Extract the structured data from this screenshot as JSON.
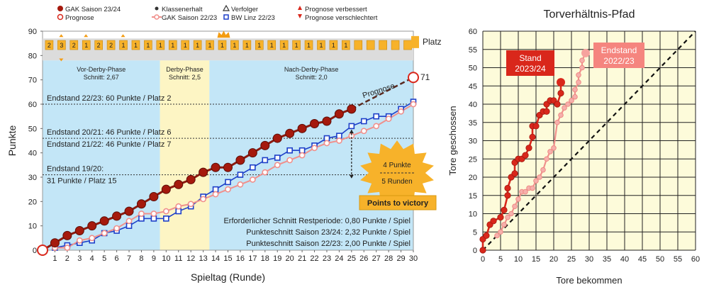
{
  "chart_data": [
    {
      "type": "line",
      "title": "",
      "xlabel": "Spieltag (Runde)",
      "ylabel": "Punkte",
      "xlim": [
        0,
        30
      ],
      "ylim": [
        0,
        90
      ],
      "x_ticks": [
        "1",
        "2",
        "3",
        "4",
        "5",
        "6",
        "7",
        "8",
        "9",
        "10",
        "11",
        "12",
        "13",
        "14",
        "15",
        "16",
        "17",
        "18",
        "19",
        "20",
        "21",
        "22",
        "23",
        "24",
        "25",
        "26",
        "27",
        "28",
        "29",
        "30"
      ],
      "y_ticks": [
        "0",
        "10",
        "20",
        "30",
        "40",
        "50",
        "60",
        "70",
        "80",
        "90"
      ],
      "series": [
        {
          "name": "GAK Saison 23/24",
          "x": [
            0,
            1,
            2,
            3,
            4,
            5,
            6,
            7,
            8,
            9,
            10,
            11,
            12,
            13,
            14,
            15,
            16,
            17,
            18,
            19,
            20,
            21,
            22,
            23,
            24,
            25
          ],
          "values": [
            0,
            3,
            6,
            8,
            10,
            12,
            14,
            16,
            19,
            22,
            25,
            27,
            29,
            32,
            34,
            34,
            37,
            40,
            43,
            46,
            48,
            50,
            52,
            53,
            56,
            58
          ]
        },
        {
          "name": "Prognose",
          "x": [
            25,
            30
          ],
          "values": [
            58,
            71
          ]
        },
        {
          "name": "GAK Saison 22/23",
          "x": [
            1,
            2,
            3,
            4,
            5,
            6,
            7,
            8,
            9,
            10,
            11,
            12,
            13,
            14,
            15,
            16,
            17,
            18,
            19,
            20,
            21,
            22,
            23,
            24,
            25,
            26,
            27,
            28,
            29,
            30
          ],
          "values": [
            1,
            1,
            4,
            5,
            7,
            9,
            12,
            15,
            15,
            16,
            18,
            19,
            21,
            23,
            25,
            27,
            29,
            32,
            35,
            37,
            39,
            42,
            44,
            45,
            47,
            49,
            51,
            54,
            57,
            60
          ]
        },
        {
          "name": "BW Linz 22/23",
          "x": [
            1,
            2,
            3,
            4,
            5,
            6,
            7,
            8,
            9,
            10,
            11,
            12,
            13,
            14,
            15,
            16,
            17,
            18,
            19,
            20,
            21,
            22,
            23,
            24,
            25,
            26,
            27,
            28,
            29,
            30
          ],
          "values": [
            1,
            2,
            3,
            4,
            7,
            8,
            10,
            13,
            13,
            13,
            16,
            18,
            22,
            25,
            28,
            31,
            34,
            37,
            38,
            41,
            41,
            43,
            46,
            47,
            51,
            53,
            55,
            55,
            58,
            61
          ]
        }
      ],
      "legend": [
        "GAK Saison 23/24",
        "Prognose",
        "Klassenerhalt",
        "GAK Saison 22/23",
        "Verfolger",
        "BW Linz 22/23",
        "Prognose verbessert",
        "Prognose verschlechtert"
      ],
      "platz_label": "Platz",
      "platz_values": [
        "2",
        "3",
        "2",
        "1",
        "2",
        "2",
        "1",
        "1",
        "1",
        "1",
        "1",
        "1",
        "1",
        "1",
        "1",
        "1",
        "1",
        "1",
        "1",
        "1",
        "1",
        "1",
        "1",
        "1",
        "1"
      ],
      "phases": [
        {
          "name": "Vor-Derby-Phase",
          "avg": "Schnitt: 2,67",
          "from": 0,
          "to": 9.5,
          "color": "#c3e6f7"
        },
        {
          "name": "Derby-Phase",
          "avg": "Schnitt: 2,5",
          "from": 9.5,
          "to": 13.5,
          "color": "#fdf5c4"
        },
        {
          "name": "Nach-Derby-Phase",
          "avg": "Schnitt: 2,0",
          "from": 13.5,
          "to": 30,
          "color": "#c3e6f7"
        }
      ],
      "reference_lines": [
        {
          "label": "Endstand 22/23: 60 Punkte / Platz 2",
          "y": 60
        },
        {
          "label1": "Endstand 20/21: 46 Punkte / Platz 6",
          "label2": "Endstand 21/22: 46 Punkte / Platz 7",
          "y": 46
        },
        {
          "label1": "Endstand 19/20:",
          "label2": "31 Punkte / Platz 15",
          "y": 31
        }
      ],
      "annotations": {
        "prognose_text": "Prognose",
        "end_value": "71",
        "burst_top": "4 Punkte",
        "burst_bottom": "5 Runden",
        "victory_button": "Points to victory",
        "stat1": "Erforderlicher Schnitt Restperiode: 0,80 Punkte / Spiel",
        "stat2": "Punkteschnitt Saison 23/24: 2,32 Punkte / Spiel",
        "stat3": "Punkteschnitt Saison 22/23: 2,00 Punkte / Spiel"
      }
    },
    {
      "type": "line",
      "title": "Torverhältnis-Pfad",
      "xlabel": "Tore  bekommen",
      "ylabel": "Tore geschossen",
      "xlim": [
        0,
        60
      ],
      "ylim": [
        0,
        60
      ],
      "x_ticks": [
        "0",
        "5",
        "10",
        "15",
        "20",
        "25",
        "30",
        "35",
        "40",
        "45",
        "50",
        "55",
        "60"
      ],
      "y_ticks": [
        "0",
        "5",
        "10",
        "15",
        "20",
        "25",
        "30",
        "35",
        "40",
        "45",
        "50",
        "55",
        "60"
      ],
      "series": [
        {
          "name": "Stand 2023/24",
          "x": [
            0,
            0,
            1,
            2,
            3,
            5,
            6,
            7,
            7,
            8,
            9,
            9,
            10,
            11,
            12,
            13,
            14,
            14,
            15,
            16,
            17,
            18,
            18,
            19,
            20,
            21,
            22,
            22
          ],
          "values": [
            0,
            3,
            4,
            7,
            8,
            9,
            11,
            15,
            17,
            20,
            21,
            24,
            25,
            25,
            26,
            28,
            31,
            34,
            34,
            37,
            38,
            38,
            40,
            41,
            41,
            40,
            43,
            46
          ]
        },
        {
          "name": "Endstand 2022/23",
          "x": [
            4,
            5,
            6,
            7,
            8,
            9,
            10,
            11,
            12,
            13,
            14,
            15,
            16,
            17,
            18,
            19,
            20,
            21,
            22,
            23,
            24,
            25,
            26,
            26,
            27,
            27,
            28,
            28,
            29
          ],
          "values": [
            4,
            5,
            7,
            9,
            10,
            12,
            14,
            16,
            16,
            17,
            17,
            19,
            20,
            22,
            25,
            27,
            28,
            35,
            37,
            39,
            40,
            41,
            42,
            44,
            46,
            48,
            50,
            52,
            54
          ]
        }
      ],
      "labels": [
        "Stand 2023/24",
        "Endstand 2022/23"
      ]
    }
  ],
  "legend": {
    "items": [
      "GAK Saison 23/24",
      "Prognose",
      "Klassenerhalt",
      "GAK Saison 22/23",
      "Verfolger",
      "BW Linz 22/23",
      "Prognose verbessert",
      "Prognose verschlechtert"
    ]
  },
  "colors": {
    "dark_red": "#8b1a10",
    "red": "#d9271b",
    "pink": "#f0908c",
    "blue": "#1d3fc8",
    "gold": "#f7b22a",
    "orange": "#f39c12"
  }
}
